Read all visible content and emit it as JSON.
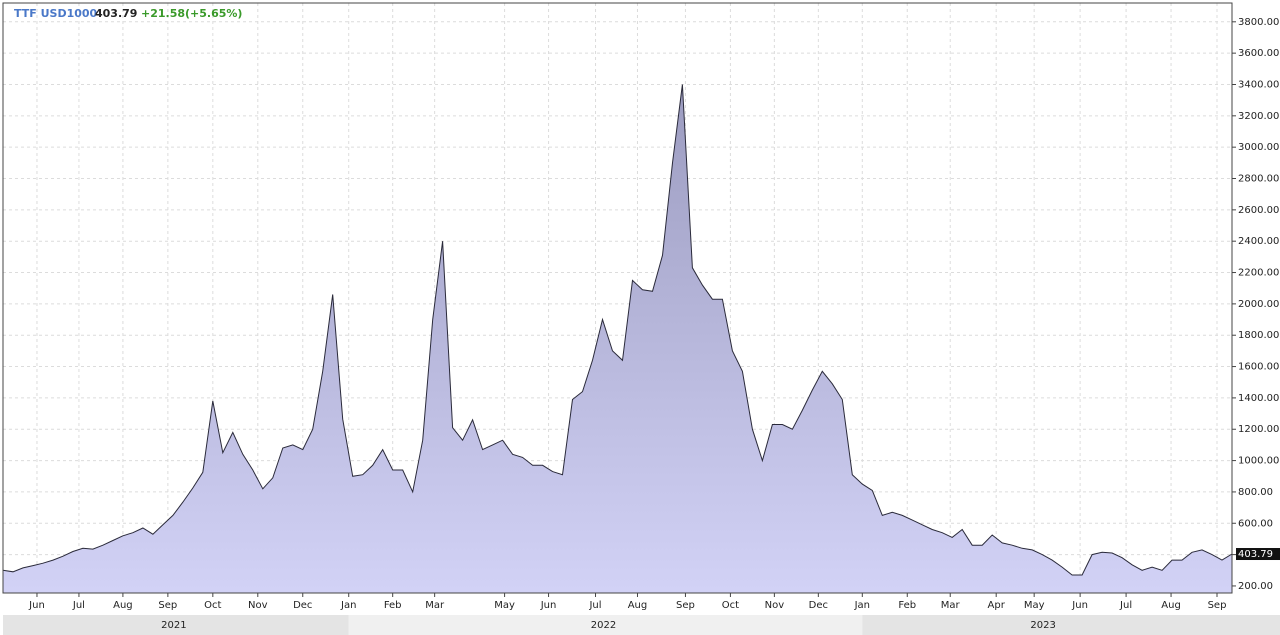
{
  "chart_data": {
    "type": "area",
    "symbol": "TTF USD1000",
    "change": "+21.58(+5.65%)",
    "series": [
      {
        "name": "TTF USD1000",
        "color": "#c4c4ee",
        "line_color": "#2a2a3a",
        "values": [
          300,
          290,
          315,
          330,
          345,
          365,
          390,
          420,
          440,
          435,
          460,
          490,
          520,
          540,
          570,
          530,
          590,
          650,
          735,
          825,
          925,
          1380,
          1050,
          1180,
          1040,
          940,
          820,
          890,
          1080,
          1100,
          1070,
          1200,
          1570,
          2060,
          1265,
          900,
          910,
          970,
          1070,
          940,
          940,
          800,
          1130,
          1900,
          2400,
          1210,
          1130,
          1260,
          1070,
          1100,
          1130,
          1040,
          1020,
          970,
          970,
          930,
          910,
          1390,
          1440,
          1640,
          1900,
          1700,
          1640,
          2150,
          2090,
          2080,
          2310,
          2900,
          3400,
          2230,
          2120,
          2030,
          2030,
          1700,
          1570,
          1200,
          1000,
          1230,
          1230,
          1200,
          1320,
          1450,
          1570,
          1490,
          1390,
          910,
          850,
          810,
          650,
          670,
          650,
          620,
          590,
          560,
          540,
          510,
          560,
          460,
          460,
          525,
          475,
          460,
          440,
          430,
          400,
          365,
          320,
          270,
          270,
          400,
          415,
          410,
          380,
          335,
          300,
          320,
          300,
          365,
          365,
          415,
          430,
          400,
          365,
          403.79
        ]
      }
    ],
    "xlim": [
      0,
      123
    ],
    "xticks": [
      {
        "value": 3.4,
        "label": "Jun"
      },
      {
        "value": 7.6,
        "label": "Jul"
      },
      {
        "value": 12,
        "label": "Aug"
      },
      {
        "value": 16.5,
        "label": "Sep"
      },
      {
        "value": 21,
        "label": "Oct"
      },
      {
        "value": 25.5,
        "label": "Nov"
      },
      {
        "value": 30,
        "label": "Dec"
      },
      {
        "value": 34.6,
        "label": "Jan"
      },
      {
        "value": 39,
        "label": "Feb"
      },
      {
        "value": 43.2,
        "label": "Mar"
      },
      {
        "value": 50.2,
        "label": "May"
      },
      {
        "value": 54.6,
        "label": "Jun"
      },
      {
        "value": 59.3,
        "label": "Jul"
      },
      {
        "value": 63.5,
        "label": "Aug"
      },
      {
        "value": 68.3,
        "label": "Sep"
      },
      {
        "value": 72.8,
        "label": "Oct"
      },
      {
        "value": 77.2,
        "label": "Nov"
      },
      {
        "value": 81.6,
        "label": "Dec"
      },
      {
        "value": 86,
        "label": "Jan"
      },
      {
        "value": 90.5,
        "label": "Feb"
      },
      {
        "value": 94.8,
        "label": "Mar"
      },
      {
        "value": 99.4,
        "label": "Apr"
      },
      {
        "value": 103.2,
        "label": "May"
      },
      {
        "value": 107.8,
        "label": "Jun"
      },
      {
        "value": 112.4,
        "label": "Jul"
      },
      {
        "value": 116.9,
        "label": "Aug"
      },
      {
        "value": 121.5,
        "label": "Sep"
      }
    ],
    "year_ticks": [
      {
        "value": 17.1,
        "label": "2021"
      },
      {
        "value": 60.1,
        "label": "2022"
      },
      {
        "value": 104.1,
        "label": "2023"
      }
    ],
    "ylim": [
      155,
      3920
    ],
    "yticks": [
      {
        "value": 200,
        "label": "200.00"
      },
      {
        "value": 400,
        "label": "400.00"
      },
      {
        "value": 600,
        "label": "600.00"
      },
      {
        "value": 800,
        "label": "800.00"
      },
      {
        "value": 1000,
        "label": "1000.00"
      },
      {
        "value": 1200,
        "label": "1200.00"
      },
      {
        "value": 1400,
        "label": "1400.00"
      },
      {
        "value": 1600,
        "label": "1600.00"
      },
      {
        "value": 1800,
        "label": "1800.00"
      },
      {
        "value": 2000,
        "label": "2000.00"
      },
      {
        "value": 2200,
        "label": "2200.00"
      },
      {
        "value": 2400,
        "label": "2400.00"
      },
      {
        "value": 2600,
        "label": "2600.00"
      },
      {
        "value": 2800,
        "label": "2800.00"
      },
      {
        "value": 3000,
        "label": "3000.00"
      },
      {
        "value": 3200,
        "label": "3200.00"
      },
      {
        "value": 3400,
        "label": "3400.00"
      },
      {
        "value": 3600,
        "label": "3600.00"
      },
      {
        "value": 3800,
        "label": "3800.00"
      }
    ],
    "grid": true
  }
}
